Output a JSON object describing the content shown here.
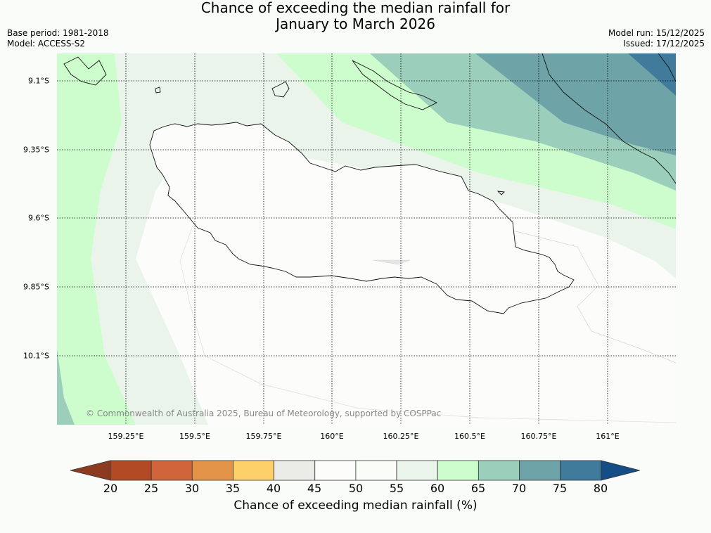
{
  "title": {
    "line1": "Chance of exceeding the median rainfall for",
    "line2": "January to March 2026"
  },
  "meta": {
    "base_period": "Base period: 1981-2018",
    "model": "Model: ACCESS-S2",
    "model_run": "Model run: 15/12/2025",
    "issued": "Issued: 17/12/2025"
  },
  "map": {
    "copyright": "© Commonwealth of Australia 2025, Bureau of Meteorology, supported by COSPPac",
    "lat_labels": [
      "9.1°S",
      "9.35°S",
      "9.6°S",
      "9.85°S",
      "10.1°S"
    ],
    "lon_labels": [
      "159.25°E",
      "159.5°E",
      "159.75°E",
      "160°E",
      "160.25°E",
      "160.5°E",
      "160.75°E",
      "161°E"
    ]
  },
  "colorbar": {
    "label": "Chance of exceeding median rainfall (%)",
    "ticks": [
      "20",
      "25",
      "30",
      "35",
      "40",
      "45",
      "50",
      "55",
      "60",
      "65",
      "70",
      "75",
      "80"
    ],
    "colors": [
      "#8c3a20",
      "#b34a26",
      "#d0643a",
      "#e39448",
      "#fdd06a",
      "#ebebe7",
      "#fcfdfb",
      "#fafcf8",
      "#ebf4eb",
      "#cdfdcd",
      "#9ccfbb",
      "#6ea4a8",
      "#417b9c",
      "#154d87"
    ]
  }
}
